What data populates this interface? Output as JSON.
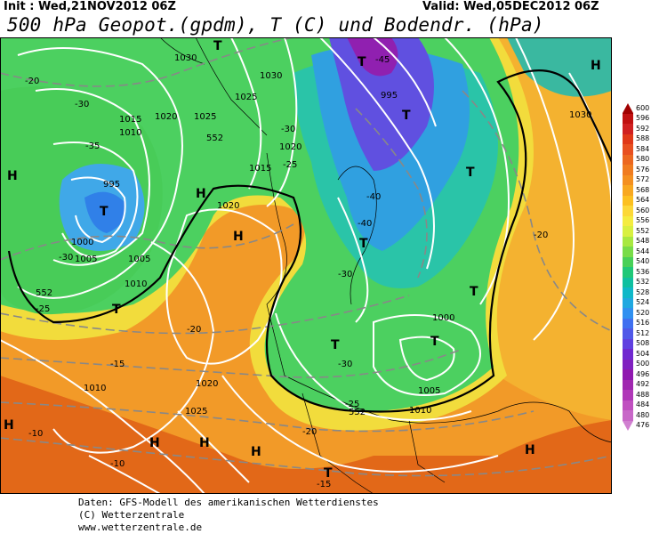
{
  "header": {
    "init": "Init : Wed,21NOV2012 06Z",
    "valid": "Valid: Wed,05DEC2012 06Z",
    "title": "500 hPa Geopot.(gpdm), T (C) und Bodendr. (hPa)"
  },
  "colorbar": {
    "labels": [
      "600",
      "596",
      "592",
      "588",
      "584",
      "580",
      "576",
      "572",
      "568",
      "564",
      "560",
      "556",
      "552",
      "548",
      "544",
      "540",
      "536",
      "532",
      "528",
      "524",
      "520",
      "516",
      "512",
      "508",
      "504",
      "500",
      "496",
      "492",
      "488",
      "484",
      "480",
      "476"
    ],
    "colors": [
      "#a00000",
      "#c01010",
      "#d02020",
      "#e03818",
      "#e85020",
      "#ec6820",
      "#f07c20",
      "#f49020",
      "#f8a820",
      "#fcc020",
      "#fcd838",
      "#f4ec40",
      "#d8f040",
      "#a8e840",
      "#78dc48",
      "#48d058",
      "#20c878",
      "#10c0a0",
      "#10b8c8",
      "#20a8e0",
      "#3090f0",
      "#4070f0",
      "#5058e8",
      "#6040e0",
      "#7028d0",
      "#8020c0",
      "#9018b0",
      "#a028b0",
      "#b038b8",
      "#c050c0",
      "#c868c8",
      "#d080d0"
    ]
  },
  "map": {
    "markers": [
      {
        "text": "H",
        "kind": "high"
      },
      {
        "text": "H",
        "kind": "high"
      },
      {
        "text": "H",
        "kind": "high"
      },
      {
        "text": "H",
        "kind": "high"
      },
      {
        "text": "H",
        "kind": "high"
      },
      {
        "text": "H",
        "kind": "high"
      },
      {
        "text": "H",
        "kind": "high"
      },
      {
        "text": "H",
        "kind": "high"
      },
      {
        "text": "H",
        "kind": "high"
      },
      {
        "text": "T",
        "kind": "low"
      },
      {
        "text": "T",
        "kind": "low"
      },
      {
        "text": "T",
        "kind": "low"
      },
      {
        "text": "T",
        "kind": "low"
      },
      {
        "text": "T",
        "kind": "low"
      },
      {
        "text": "T",
        "kind": "low"
      },
      {
        "text": "T",
        "kind": "low"
      },
      {
        "text": "T",
        "kind": "low"
      },
      {
        "text": "T",
        "kind": "low"
      },
      {
        "text": "T",
        "kind": "low"
      },
      {
        "text": "T",
        "kind": "low"
      }
    ],
    "isobar_labels": [
      "1030",
      "1025",
      "1020",
      "1015",
      "1010",
      "1005",
      "1000",
      "995",
      "1030",
      "1025",
      "1020",
      "1015",
      "1010",
      "1005",
      "1000",
      "995",
      "1030",
      "1025",
      "1020",
      "1010",
      "1005",
      "1000",
      "1020",
      "1010"
    ],
    "temp_labels": [
      "-20",
      "-30",
      "-35",
      "-30",
      "-25",
      "-20",
      "-15",
      "-10",
      "-25",
      "-30",
      "-40",
      "-45",
      "-40",
      "-30",
      "-25",
      "-20",
      "-10",
      "-15",
      "-20",
      "-30"
    ],
    "geopot_labels": [
      "552",
      "552",
      "552"
    ]
  },
  "footer": {
    "line1": "Daten: GFS-Modell des amerikanischen Wetterdienstes",
    "line2": "(C) Wetterzentrale",
    "line3": "www.wetterzentrale.de"
  }
}
